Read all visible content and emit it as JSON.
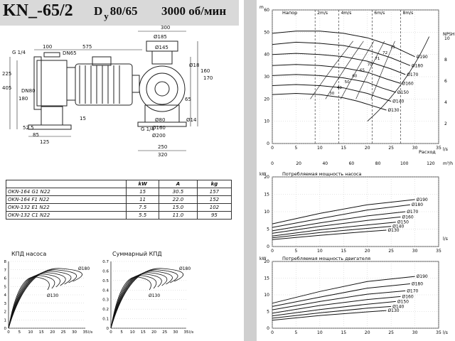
{
  "header": {
    "model": "KN_-65/2",
    "dn_text": "D",
    "dn_sub": "у",
    "dn_value": "80/65",
    "speed": "3000 об/мин"
  },
  "drawing_dims": {
    "top": [
      "G 1/4",
      "100",
      "DN65",
      "575"
    ],
    "left": [
      "225",
      "405",
      "180",
      "DN80",
      "52.5",
      "85",
      "125"
    ],
    "bottom_left": [
      "15"
    ],
    "side": [
      "300",
      "Ø185",
      "Ø145",
      "Ø18",
      "160",
      "170",
      "65",
      "Ø14",
      "G 1/4",
      "Ø80",
      "Ø160",
      "Ø200",
      "250",
      "320"
    ]
  },
  "motor_table": {
    "headers": [
      "",
      "kW",
      "A",
      "kg"
    ],
    "rows": [
      [
        "OKN-164 G1 N22",
        "15",
        "30.5",
        "157"
      ],
      [
        "OKN-164 F1 N22",
        "11",
        "22.0",
        "152"
      ],
      [
        "OKN-132 E1 N22",
        "7.5",
        "15.0",
        "102"
      ],
      [
        "OKN-132 C1 N22",
        "5.5",
        "11.0",
        "95"
      ]
    ]
  },
  "eff_pump": {
    "title": "КПД насоса",
    "yticks": [
      "0",
      "1",
      "2",
      "3",
      "4",
      "5",
      "6",
      "7",
      "8"
    ],
    "xticks": [
      "0",
      "5",
      "10",
      "15",
      "20",
      "25",
      "30",
      "35"
    ],
    "xunit": "l/s",
    "labels": [
      "Ø180",
      "Ø130"
    ]
  },
  "eff_total": {
    "title": "Суммарный КПД",
    "yticks": [
      "0",
      "0.1",
      "0.2",
      "0.3",
      "0.4",
      "0.5",
      "0.6",
      "0.7"
    ],
    "xticks": [
      "0",
      "5",
      "10",
      "15",
      "20",
      "25",
      "30",
      "35"
    ],
    "xunit": "l/s",
    "labels": [
      "Ø180",
      "Ø130"
    ]
  },
  "chart_data": [
    {
      "type": "line",
      "title": "Напор",
      "ylabel": "m",
      "xlabel": "Расход",
      "x_unit_top": "l/s",
      "x_unit_bottom": "m³/h",
      "ylim": [
        0,
        60
      ],
      "xlim": [
        0,
        35
      ],
      "yticks": [
        0,
        10,
        20,
        30,
        40,
        50,
        60
      ],
      "xticks": [
        0,
        5,
        10,
        15,
        20,
        25,
        30,
        35
      ],
      "xticks_m3h": [
        0,
        20,
        40,
        60,
        80,
        100,
        120
      ],
      "velocity_labels": [
        "2m/s",
        "4m/s",
        "6m/s",
        "8m/s"
      ],
      "npsh_label": "NPSH",
      "npsh_ticks": [
        2,
        4,
        6,
        8,
        10
      ],
      "efficiency_labels": [
        "30",
        "40",
        "50",
        "60",
        "65",
        "70",
        "71",
        "72",
        "73"
      ],
      "series": [
        {
          "name": "Ø190",
          "x": [
            0,
            5,
            10,
            15,
            20,
            25,
            30
          ],
          "y": [
            49.5,
            50.5,
            50.5,
            49.5,
            47.5,
            44,
            39
          ]
        },
        {
          "name": "Ø180",
          "x": [
            0,
            5,
            10,
            15,
            20,
            25,
            29
          ],
          "y": [
            44.5,
            45.5,
            45,
            44,
            42,
            38.5,
            35
          ]
        },
        {
          "name": "Ø170",
          "x": [
            0,
            5,
            10,
            15,
            20,
            25,
            28
          ],
          "y": [
            40,
            40.5,
            40,
            39,
            37,
            33.5,
            31
          ]
        },
        {
          "name": "Ø160",
          "x": [
            0,
            5,
            10,
            15,
            20,
            24,
            27
          ],
          "y": [
            35,
            35.5,
            35,
            34,
            32,
            29,
            27
          ]
        },
        {
          "name": "Ø150",
          "x": [
            0,
            5,
            10,
            15,
            20,
            23,
            26
          ],
          "y": [
            30.5,
            31,
            30.5,
            29.5,
            27.5,
            25,
            23
          ]
        },
        {
          "name": "Ø140",
          "x": [
            0,
            5,
            10,
            15,
            20,
            22,
            25
          ],
          "y": [
            26,
            26.5,
            26,
            25,
            22.5,
            21,
            19
          ]
        },
        {
          "name": "Ø130",
          "x": [
            0,
            5,
            10,
            15,
            18,
            21,
            24
          ],
          "y": [
            22,
            22.5,
            22,
            20.5,
            19,
            17,
            15
          ]
        }
      ]
    },
    {
      "type": "line",
      "title": "Потребляемая мощность насоса",
      "ylabel": "kW",
      "x_unit": "l/s",
      "ylim": [
        0,
        20
      ],
      "xlim": [
        0,
        35
      ],
      "yticks": [
        0,
        5,
        10,
        15,
        20
      ],
      "xticks": [
        0,
        5,
        10,
        15,
        20,
        25,
        30,
        35
      ],
      "series": [
        {
          "name": "Ø190",
          "x": [
            0,
            10,
            20,
            30
          ],
          "y": [
            6.5,
            9.5,
            12,
            13.5
          ]
        },
        {
          "name": "Ø180",
          "x": [
            0,
            10,
            20,
            29
          ],
          "y": [
            5.5,
            8,
            10.5,
            12
          ]
        },
        {
          "name": "Ø170",
          "x": [
            0,
            10,
            20,
            28
          ],
          "y": [
            4.5,
            6.8,
            8.8,
            10
          ]
        },
        {
          "name": "Ø160",
          "x": [
            0,
            10,
            20,
            27
          ],
          "y": [
            3.8,
            5.8,
            7.5,
            8.5
          ]
        },
        {
          "name": "Ø150",
          "x": [
            0,
            10,
            20,
            26
          ],
          "y": [
            3,
            4.8,
            6.2,
            7
          ]
        },
        {
          "name": "Ø140",
          "x": [
            0,
            10,
            20,
            25
          ],
          "y": [
            2.5,
            4,
            5.2,
            5.8
          ]
        },
        {
          "name": "Ø130",
          "x": [
            0,
            10,
            20,
            24
          ],
          "y": [
            2,
            3.2,
            4.3,
            4.7
          ]
        }
      ]
    },
    {
      "type": "line",
      "title": "Потребляемая мощность двигателя",
      "ylabel": "kW",
      "x_unit": "l/s",
      "ylim": [
        0,
        20
      ],
      "xlim": [
        0,
        35
      ],
      "yticks": [
        0,
        5,
        10,
        15,
        20
      ],
      "xticks": [
        0,
        5,
        10,
        15,
        20,
        25,
        30,
        35
      ],
      "series": [
        {
          "name": "Ø190",
          "x": [
            0,
            10,
            20,
            30
          ],
          "y": [
            7.5,
            11,
            14,
            15.5
          ]
        },
        {
          "name": "Ø180",
          "x": [
            0,
            10,
            20,
            29
          ],
          "y": [
            6.5,
            9.3,
            12,
            13.3
          ]
        },
        {
          "name": "Ø170",
          "x": [
            0,
            10,
            20,
            28
          ],
          "y": [
            5.5,
            8,
            10.2,
            11.2
          ]
        },
        {
          "name": "Ø160",
          "x": [
            0,
            10,
            20,
            27
          ],
          "y": [
            4.5,
            6.8,
            8.6,
            9.5
          ]
        },
        {
          "name": "Ø150",
          "x": [
            0,
            10,
            20,
            26
          ],
          "y": [
            3.7,
            5.6,
            7.2,
            8
          ]
        },
        {
          "name": "Ø140",
          "x": [
            0,
            10,
            20,
            25
          ],
          "y": [
            3,
            4.6,
            6,
            6.5
          ]
        },
        {
          "name": "Ø130",
          "x": [
            0,
            10,
            20,
            24
          ],
          "y": [
            2.4,
            3.8,
            4.9,
            5.3
          ]
        }
      ]
    }
  ]
}
